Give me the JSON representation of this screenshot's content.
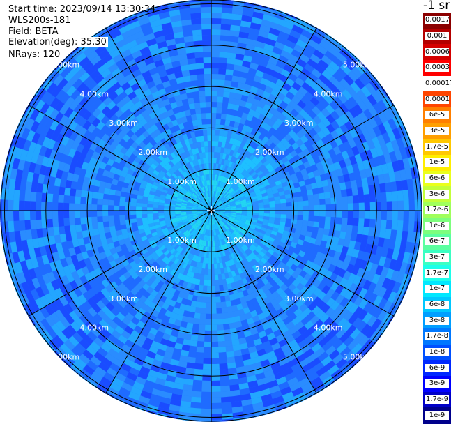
{
  "header": {
    "start_time": "Start time: 2023/09/14 13:30:34",
    "instrument": "WLS200s-181",
    "field": "Field: BETA",
    "elevation": "Elevation(deg): 35.30",
    "nrays": "NRays: 120"
  },
  "ppi": {
    "range_labels": [
      "1.00km",
      "2.00km",
      "3.00km",
      "4.00km",
      "5.00km"
    ],
    "radial_count": 12,
    "palette": [
      "#1a4cff",
      "#1f6bff",
      "#2a8cff",
      "#23a6ff",
      "#1ec0ff",
      "#22d6f2"
    ]
  },
  "colorbar": {
    "unit": "-1 sr",
    "labels": [
      "0.0017",
      "0.001",
      "0.0006",
      "0.0003",
      "0.00017",
      "0.0001",
      "6e-5",
      "3e-5",
      "1.7e-5",
      "1e-5",
      "6e-6",
      "3e-6",
      "1.7e-6",
      "1e-6",
      "6e-7",
      "3e-7",
      "1.7e-7",
      "1e-7",
      "6e-8",
      "3e-8",
      "1.7e-8",
      "1e-8",
      "6e-9",
      "3e-9",
      "1.7e-9",
      "1e-9"
    ],
    "colors": [
      "#8b0000",
      "#b30000",
      "#d40000",
      "#ff0000",
      "#ffffff",
      "#ff4500",
      "#ff7f00",
      "#ff9f00",
      "#ffc800",
      "#ffee00",
      "#eaff1c",
      "#c3ff3a",
      "#a0ff5c",
      "#7dff7d",
      "#5cffa0",
      "#3affc3",
      "#1cffea",
      "#00e8ff",
      "#00c8ff",
      "#009fff",
      "#0078ff",
      "#0050ff",
      "#0028ff",
      "#0000ff",
      "#0000c8",
      "#00008b"
    ]
  }
}
